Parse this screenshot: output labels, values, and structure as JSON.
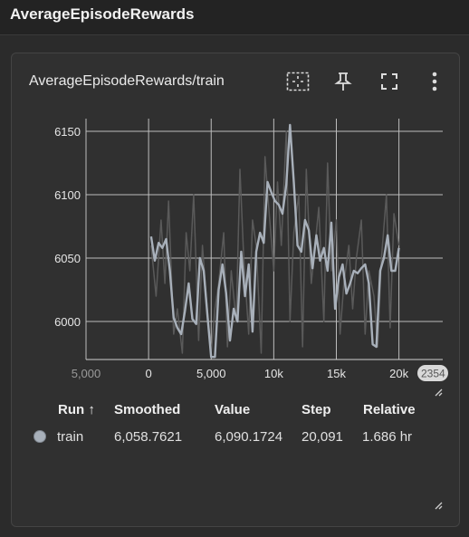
{
  "header": {
    "title": "AverageEpisodeRewards"
  },
  "card": {
    "title": "AverageEpisodeRewards/train",
    "tools": [
      "fit-domain-icon",
      "pin-icon",
      "fullscreen-icon",
      "more-vert-icon"
    ]
  },
  "chart_data": {
    "type": "line",
    "xlim": [
      -5000,
      23500
    ],
    "ylim": [
      5970,
      6160
    ],
    "x_ticks": [
      "5,000",
      "0",
      "5,000",
      "10k",
      "15k",
      "20k"
    ],
    "x_tick_values": [
      -5000,
      0,
      5000,
      10000,
      15000,
      20000
    ],
    "x_overflow_label": "2354",
    "y_ticks": [
      "6150",
      "6100",
      "6050",
      "6000"
    ],
    "y_tick_values": [
      6150,
      6100,
      6050,
      6000
    ],
    "grid": true,
    "series": [
      {
        "role": "raw",
        "color": "#5a5a5a",
        "x": [
          200,
          600,
          1000,
          1300,
          1600,
          2000,
          2300,
          2700,
          3000,
          3300,
          3600,
          4000,
          4300,
          4600,
          5000,
          5300,
          5600,
          6000,
          6300,
          6600,
          7000,
          7300,
          7600,
          8000,
          8300,
          8600,
          9000,
          9300,
          9600,
          10000,
          10300,
          10600,
          11000,
          11300,
          11600,
          12000,
          12300,
          12600,
          13000,
          13300,
          13600,
          14000,
          14300,
          14600,
          15000,
          15300,
          15600,
          16000,
          16300,
          16600,
          17000,
          17300,
          17600,
          18000,
          18300,
          18600,
          19000,
          19300,
          19600,
          20000
        ],
        "y": [
          6060,
          6020,
          6080,
          6030,
          6095,
          5990,
          6010,
          5975,
          6070,
          6040,
          6100,
          5985,
          6060,
          6020,
          5975,
          6010,
          6030,
          6070,
          5980,
          6040,
          6000,
          6120,
          6050,
          5990,
          6080,
          6060,
          5975,
          6130,
          6090,
          6040,
          6110,
          6060,
          6150,
          6000,
          6070,
          6100,
          5980,
          6120,
          6030,
          6060,
          6090,
          6000,
          6125,
          6040,
          6080,
          5990,
          6030,
          6060,
          6010,
          6050,
          6080,
          5990,
          6040,
          6020,
          5980,
          6050,
          6100,
          5995,
          6085,
          6060
        ]
      },
      {
        "name": "train",
        "role": "smoothed",
        "color": "#a8b0ba",
        "x": [
          200,
          500,
          800,
          1100,
          1400,
          1700,
          2000,
          2300,
          2600,
          2900,
          3200,
          3500,
          3800,
          4100,
          4400,
          4700,
          5000,
          5300,
          5600,
          5900,
          6200,
          6500,
          6800,
          7100,
          7400,
          7700,
          8000,
          8300,
          8600,
          8900,
          9200,
          9500,
          9800,
          10100,
          10400,
          10700,
          11000,
          11300,
          11600,
          11900,
          12200,
          12500,
          12800,
          13100,
          13400,
          13700,
          14000,
          14300,
          14600,
          14900,
          15200,
          15500,
          15800,
          16100,
          16400,
          16700,
          17000,
          17300,
          17600,
          17900,
          18200,
          18500,
          18800,
          19100,
          19400,
          19700,
          20000
        ],
        "y": [
          6067,
          6048,
          6062,
          6058,
          6065,
          6040,
          6003,
          5995,
          5990,
          6008,
          6030,
          6002,
          5998,
          6050,
          6040,
          6005,
          5972,
          5972,
          6025,
          6045,
          6022,
          5985,
          6010,
          6000,
          6055,
          6020,
          6045,
          5992,
          6055,
          6070,
          6062,
          6110,
          6102,
          6095,
          6092,
          6085,
          6108,
          6155,
          6110,
          6060,
          6055,
          6080,
          6072,
          6042,
          6068,
          6048,
          6058,
          6040,
          6078,
          6010,
          6035,
          6045,
          6022,
          6030,
          6040,
          6038,
          6042,
          6045,
          6030,
          5982,
          5980,
          6040,
          6050,
          6068,
          6040,
          6040,
          6058
        ]
      }
    ]
  },
  "table": {
    "headers": {
      "run": "Run ↑",
      "smoothed": "Smoothed",
      "value": "Value",
      "step": "Step",
      "relative": "Relative"
    },
    "rows": [
      {
        "run": "train",
        "smoothed": "6,058.7621",
        "value": "6,090.1724",
        "step": "20,091",
        "relative": "1.686 hr",
        "color": "#a8b0ba"
      }
    ]
  }
}
